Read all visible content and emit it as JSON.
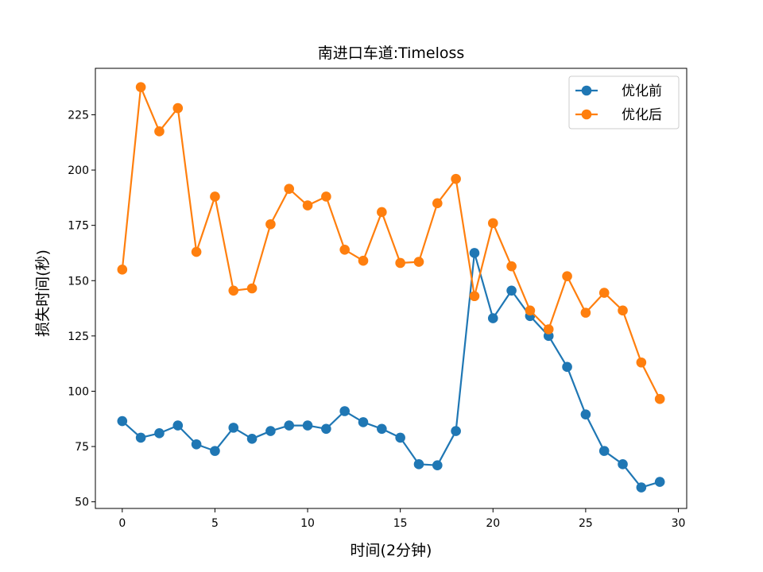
{
  "chart_data": {
    "type": "line",
    "title": "南进口车道:Timeloss",
    "xlabel": "时间(2分钟)",
    "ylabel": "损失时间(秒)",
    "xlim": [
      -1.45,
      30.45
    ],
    "ylim": [
      47,
      246
    ],
    "xticks": [
      0,
      5,
      10,
      15,
      20,
      25,
      30
    ],
    "yticks": [
      50,
      75,
      100,
      125,
      150,
      175,
      200,
      225
    ],
    "grid": false,
    "legend_position": "top-right",
    "x": [
      0,
      1,
      2,
      3,
      4,
      5,
      6,
      7,
      8,
      9,
      10,
      11,
      12,
      13,
      14,
      15,
      16,
      17,
      18,
      19,
      20,
      21,
      22,
      23,
      24,
      25,
      26,
      27,
      28,
      29
    ],
    "series": [
      {
        "name": "优化前",
        "color": "#1f77b4",
        "marker": "circle",
        "values": [
          86.5,
          79,
          81,
          84.5,
          76,
          73,
          83.5,
          78.5,
          82,
          84.5,
          84.5,
          83,
          91,
          86,
          83,
          79,
          67,
          66.5,
          82,
          162.5,
          133,
          145.5,
          134,
          125,
          111,
          89.5,
          73,
          67,
          56.5,
          59
        ]
      },
      {
        "name": "优化后",
        "color": "#ff7f0e",
        "marker": "circle",
        "values": [
          155,
          237.5,
          217.5,
          228,
          163,
          188,
          145.5,
          146.5,
          175.5,
          191.5,
          184,
          188,
          164,
          159,
          181,
          158,
          158.5,
          185,
          196,
          143,
          176,
          156.5,
          136.5,
          128,
          152,
          135.5,
          144.5,
          136.5,
          113,
          96.5
        ]
      }
    ]
  }
}
